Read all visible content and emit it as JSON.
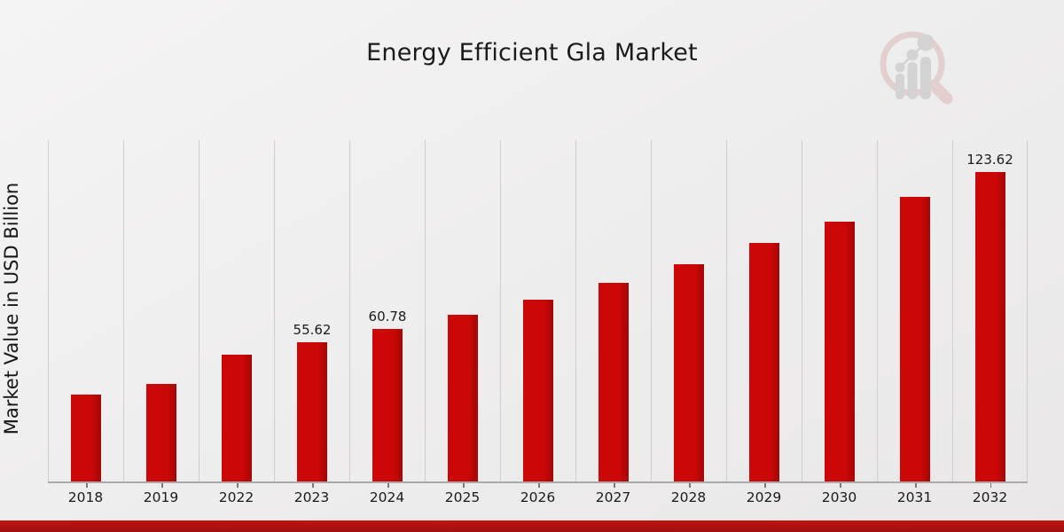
{
  "page": {
    "title": "Energy Efficient Gla Market",
    "ylabel": "Market Value in USD Billion",
    "text_color": "#1b1b1b",
    "background_color": "#efeeee",
    "footer_top_color": "#c2140f",
    "footer_bottom_color": "#9d110d",
    "watermark_icon": "magnifier-growth-chart-logo"
  },
  "chart_data": {
    "type": "bar",
    "title": "Energy Efficient Gla Market",
    "xlabel": "",
    "ylabel": "Market Value in USD Billion",
    "categories": [
      "2018",
      "2019",
      "2022",
      "2023",
      "2024",
      "2025",
      "2026",
      "2027",
      "2028",
      "2029",
      "2030",
      "2031",
      "2032"
    ],
    "values": [
      34.7,
      39.0,
      50.6,
      55.62,
      60.78,
      66.6,
      72.6,
      79.3,
      86.8,
      95.3,
      103.8,
      113.7,
      123.62
    ],
    "data_labels": [
      "",
      "",
      "",
      "55.62",
      "60.78",
      "",
      "",
      "",
      "",
      "",
      "",
      "",
      "123.62"
    ],
    "bar_color": "#cb0707",
    "bar_edge_color": "#a30606",
    "grid": "vertical-only",
    "gridline_color": "#cfcece",
    "axis_line_color": "#a9a9a9",
    "legend": "none",
    "ylim": [
      0,
      137
    ]
  }
}
